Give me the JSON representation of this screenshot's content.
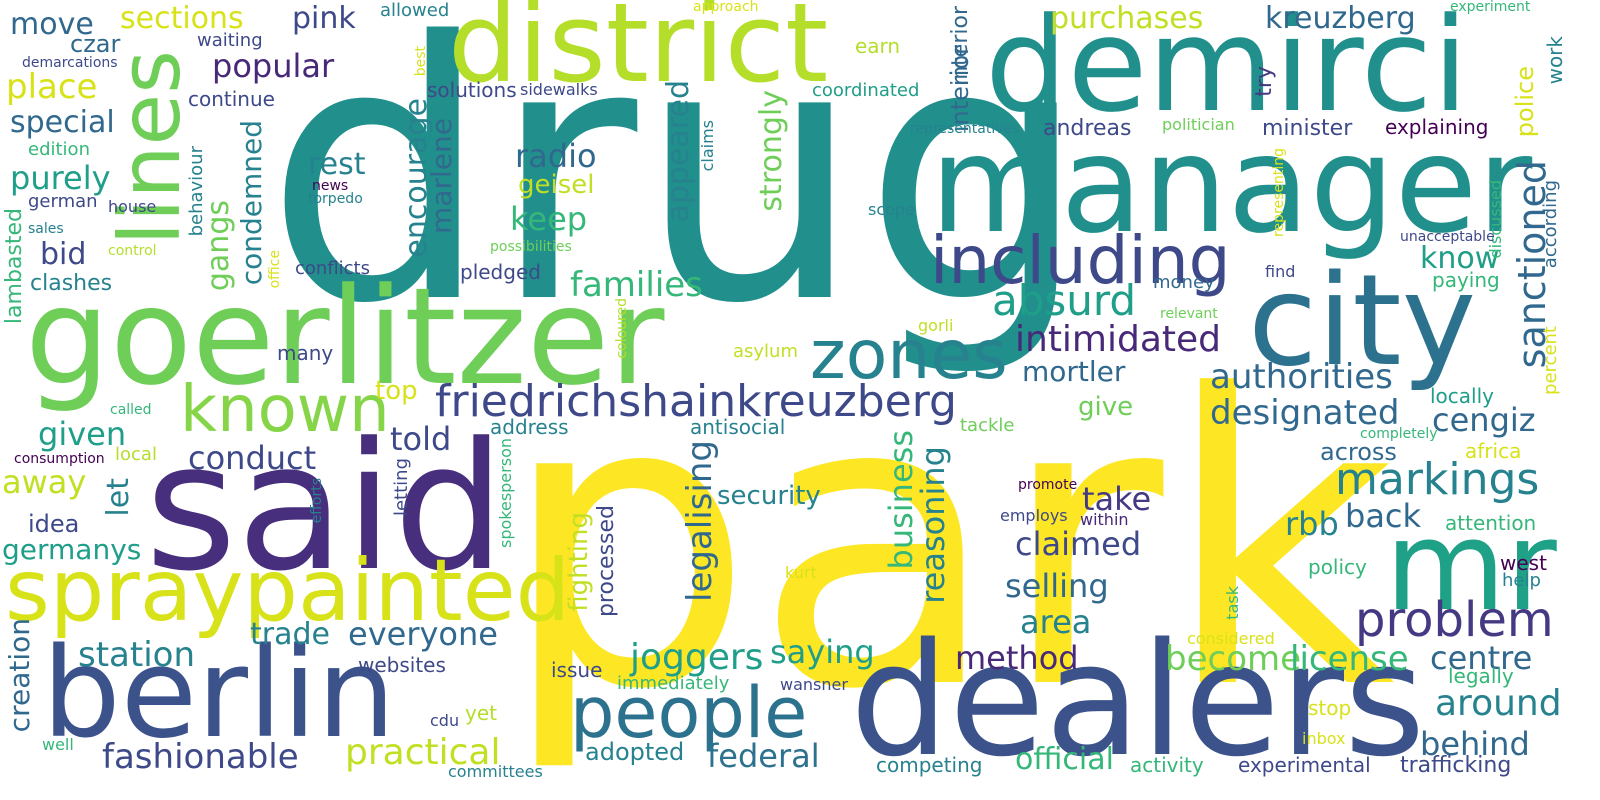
{
  "palette": {
    "background": "#ffffff",
    "yellow": "#fde725",
    "lime": "#b5de2b",
    "light_green": "#6ece58",
    "green": "#35b779",
    "sea_green": "#1f9e89",
    "teal": "#26828e",
    "blue_teal": "#31688e",
    "slate_blue": "#3e4989",
    "indigo": "#482878",
    "dark_purple": "#440154"
  },
  "words": {
    "drug": "drug",
    "park": "park",
    "manager": "manager",
    "said": "said",
    "goerlitzer": "goerlitzer",
    "dealers": "dealers",
    "demirci": "demirci",
    "district": "district",
    "berlin": "berlin",
    "city": "city",
    "spraypainted": "spraypainted",
    "mr": "mr",
    "lines": "lines",
    "people": "people",
    "including": "including",
    "zones": "zones",
    "known": "known",
    "friedrichshainkreuzberg": "friedrichshainkreuzberg",
    "absurd": "absurd",
    "markings": "markings",
    "problem": "problem",
    "intimidated": "intimidated",
    "authorities": "authorities",
    "designated": "designated",
    "sanctioned": "sanctioned",
    "families": "families",
    "joggers": "joggers",
    "become": "become",
    "license": "license",
    "everyone": "everyone",
    "practical": "practical",
    "fashionable": "fashionable",
    "station": "station",
    "around": "around",
    "behind": "behind",
    "centre": "centre",
    "claimed": "claimed",
    "selling": "selling",
    "method": "method",
    "saying": "saying",
    "area": "area",
    "federal": "federal",
    "official": "official",
    "take": "take",
    "back": "back",
    "rbb": "rbb",
    "cengiz": "cengiz",
    "across": "across",
    "know": "know",
    "mortler": "mortler",
    "give": "give",
    "told": "told",
    "conduct": "conduct",
    "given": "given",
    "away": "away",
    "germanys": "germanys",
    "idea": "idea",
    "let": "let",
    "creation": "creation",
    "trade": "trade",
    "security": "security",
    "legalising": "legalising",
    "business": "business",
    "reasoning": "reasoning",
    "fighting": "fighting",
    "processed": "processed",
    "keep": "keep",
    "radio": "radio",
    "geisel": "geisel",
    "rest": "rest",
    "appeared": "appeared",
    "strongly": "strongly",
    "encourage": "encourage",
    "marlene": "marlene",
    "condemned": "condemned",
    "gangs": "gangs",
    "purely": "purely",
    "bid": "bid",
    "special": "special",
    "place": "place",
    "move": "move",
    "czar": "czar",
    "sections": "sections",
    "pink": "pink",
    "popular": "popular",
    "waiting": "waiting",
    "continue": "continue",
    "solutions": "solutions",
    "sidewalks": "sidewalks",
    "purchases": "purchases",
    "kreuzberg": "kreuzberg",
    "interior": "interior",
    "earn": "earn",
    "coordinated": "coordinated",
    "representatives": "representatives",
    "andreas": "andreas",
    "minister": "minister",
    "explaining": "explaining",
    "politician": "politician",
    "police": "police",
    "try": "try",
    "work": "work",
    "experiment": "experiment",
    "according": "according",
    "discussed": "discussed",
    "representing": "representing",
    "unacceptable": "unacceptable",
    "find": "find",
    "paying": "paying",
    "money": "money",
    "relevant": "relevant",
    "gorli": "gorli",
    "asylum": "asylum",
    "locally": "locally",
    "percent": "percent",
    "completely": "completely",
    "africa": "africa",
    "attention": "attention",
    "policy": "policy",
    "west": "west",
    "help": "help",
    "legally": "legally",
    "stop": "stop",
    "inbox": "inbox",
    "considered": "considered",
    "task": "task",
    "experimental": "experimental",
    "activity": "activity",
    "trafficking": "trafficking",
    "competing": "competing",
    "wansner": "wansner",
    "immediately": "immediately",
    "issue": "issue",
    "adopted": "adopted",
    "kurt": "kurt",
    "promote": "promote",
    "employs": "employs",
    "within": "within",
    "tackle": "tackle",
    "antisocial": "antisocial",
    "address": "address",
    "spokesperson": "spokesperson",
    "letting": "letting",
    "efforts": "efforts",
    "websites": "websites",
    "yet": "yet",
    "cdu": "cdu",
    "committees": "committees",
    "well": "well",
    "lambasted": "lambasted",
    "clashes": "clashes",
    "conflicts": "conflicts",
    "many": "many",
    "pledged": "pledged",
    "top": "top",
    "office": "office",
    "possibilities": "possibilities",
    "coloured": "coloured",
    "claims": "claims",
    "scope": "scope",
    "edition": "edition",
    "german": "german",
    "house": "house",
    "behaviour": "behaviour",
    "news": "news",
    "torpedo": "torpedo",
    "sales": "sales",
    "control": "control",
    "called": "called",
    "consumption": "consumption",
    "local": "local",
    "demarcations": "demarcations",
    "allowed": "allowed",
    "approach": "approach",
    "best": "best"
  }
}
